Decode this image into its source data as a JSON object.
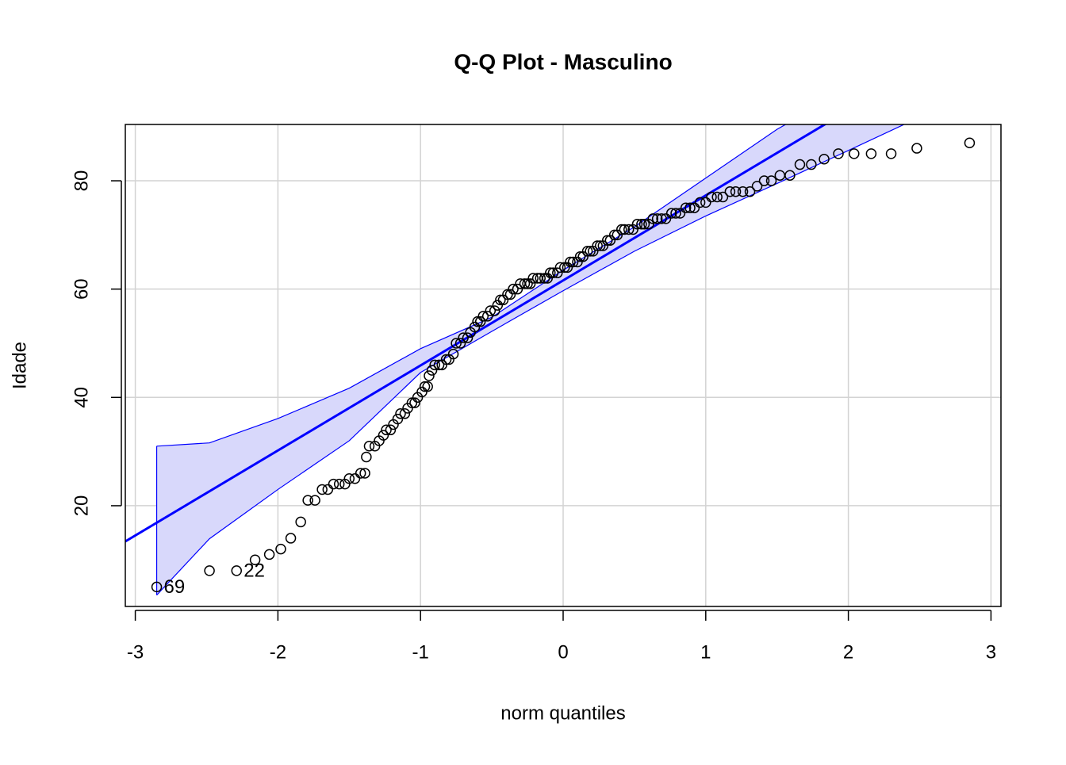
{
  "chart_data": {
    "type": "qq",
    "title": "Q-Q Plot - Masculino",
    "x_label": "norm quantiles",
    "y_label": "Idade",
    "xlim": [
      -3.07,
      3.07
    ],
    "ylim": [
      1.4,
      90.4
    ],
    "xticks": [
      -3,
      -2,
      -1,
      0,
      1,
      2,
      3
    ],
    "yticks": [
      20,
      40,
      60,
      80
    ],
    "grid": true,
    "series": [
      {
        "name": "Idade",
        "color": "#000000",
        "x": [
          -2.85,
          -2.48,
          -2.29,
          -2.16,
          -2.06,
          -1.98,
          -1.91,
          -1.84,
          -1.79,
          -1.74,
          -1.69,
          -1.65,
          -1.61,
          -1.57,
          -1.53,
          -1.5,
          -1.46,
          -1.42,
          -1.39,
          -1.38,
          -1.36,
          -1.32,
          -1.29,
          -1.26,
          -1.24,
          -1.21,
          -1.19,
          -1.16,
          -1.14,
          -1.11,
          -1.09,
          -1.06,
          -1.04,
          -1.02,
          -0.99,
          -0.97,
          -0.95,
          -0.94,
          -0.92,
          -0.9,
          -0.87,
          -0.85,
          -0.82,
          -0.8,
          -0.77,
          -0.75,
          -0.72,
          -0.7,
          -0.67,
          -0.65,
          -0.62,
          -0.6,
          -0.58,
          -0.56,
          -0.53,
          -0.51,
          -0.48,
          -0.46,
          -0.44,
          -0.42,
          -0.39,
          -0.37,
          -0.35,
          -0.32,
          -0.3,
          -0.27,
          -0.25,
          -0.23,
          -0.21,
          -0.18,
          -0.16,
          -0.13,
          -0.11,
          -0.09,
          -0.07,
          -0.04,
          -0.02,
          0.01,
          0.03,
          0.05,
          0.07,
          0.1,
          0.12,
          0.14,
          0.17,
          0.19,
          0.21,
          0.24,
          0.26,
          0.28,
          0.31,
          0.33,
          0.36,
          0.38,
          0.41,
          0.43,
          0.46,
          0.49,
          0.52,
          0.55,
          0.57,
          0.6,
          0.63,
          0.66,
          0.69,
          0.72,
          0.76,
          0.79,
          0.82,
          0.86,
          0.89,
          0.92,
          0.96,
          1.0,
          1.04,
          1.08,
          1.12,
          1.17,
          1.21,
          1.26,
          1.31,
          1.36,
          1.41,
          1.46,
          1.52,
          1.59,
          1.66,
          1.74,
          1.83,
          1.93,
          2.04,
          2.16,
          2.3,
          2.48,
          2.85
        ],
        "values": [
          5,
          8,
          8,
          10,
          11,
          12,
          14,
          17,
          21,
          21,
          23,
          23,
          24,
          24,
          24,
          25,
          25,
          26,
          26,
          29,
          31,
          31,
          32,
          33,
          34,
          34,
          35,
          36,
          37,
          37,
          38,
          39,
          39,
          40,
          41,
          42,
          42,
          44,
          45,
          46,
          46,
          46,
          47,
          47,
          48,
          50,
          50,
          51,
          51,
          52,
          53,
          54,
          54,
          55,
          55,
          56,
          56,
          57,
          58,
          58,
          59,
          59,
          60,
          60,
          61,
          61,
          61,
          61,
          62,
          62,
          62,
          62,
          62,
          63,
          63,
          63,
          64,
          64,
          64,
          65,
          65,
          65,
          66,
          66,
          67,
          67,
          67,
          68,
          68,
          68,
          69,
          69,
          70,
          70,
          71,
          71,
          71,
          71,
          72,
          72,
          72,
          72,
          73,
          73,
          73,
          73,
          74,
          74,
          74,
          75,
          75,
          75,
          76,
          76,
          77,
          77,
          77,
          78,
          78,
          78,
          78,
          79,
          80,
          80,
          81,
          81,
          83,
          83,
          84,
          85,
          85,
          85,
          85,
          86,
          87
        ]
      }
    ],
    "reference_line": {
      "intercept": 61.6,
      "slope": 15.7,
      "color": "#0000ff"
    },
    "envelope": {
      "color": "#0000ff",
      "fill": "#d8d8fb",
      "x": [
        -2.85,
        -2.48,
        -2.0,
        -1.5,
        -1.0,
        -0.5,
        0,
        0.5,
        1.0,
        1.5,
        2.0,
        2.48,
        2.85
      ],
      "upper": [
        31,
        31.6,
        36.1,
        41.7,
        49,
        54.8,
        63.5,
        71.5,
        80.5,
        89.5,
        97,
        104,
        110
      ],
      "lower": [
        3.5,
        13.9,
        23,
        32,
        44.6,
        52.2,
        59.7,
        67,
        73.5,
        79.5,
        85.6,
        91.5,
        93
      ]
    },
    "annotations": [
      {
        "text": "69",
        "x": -2.85,
        "y": 5
      },
      {
        "text": "22",
        "x": -2.29,
        "y": 8
      }
    ]
  }
}
